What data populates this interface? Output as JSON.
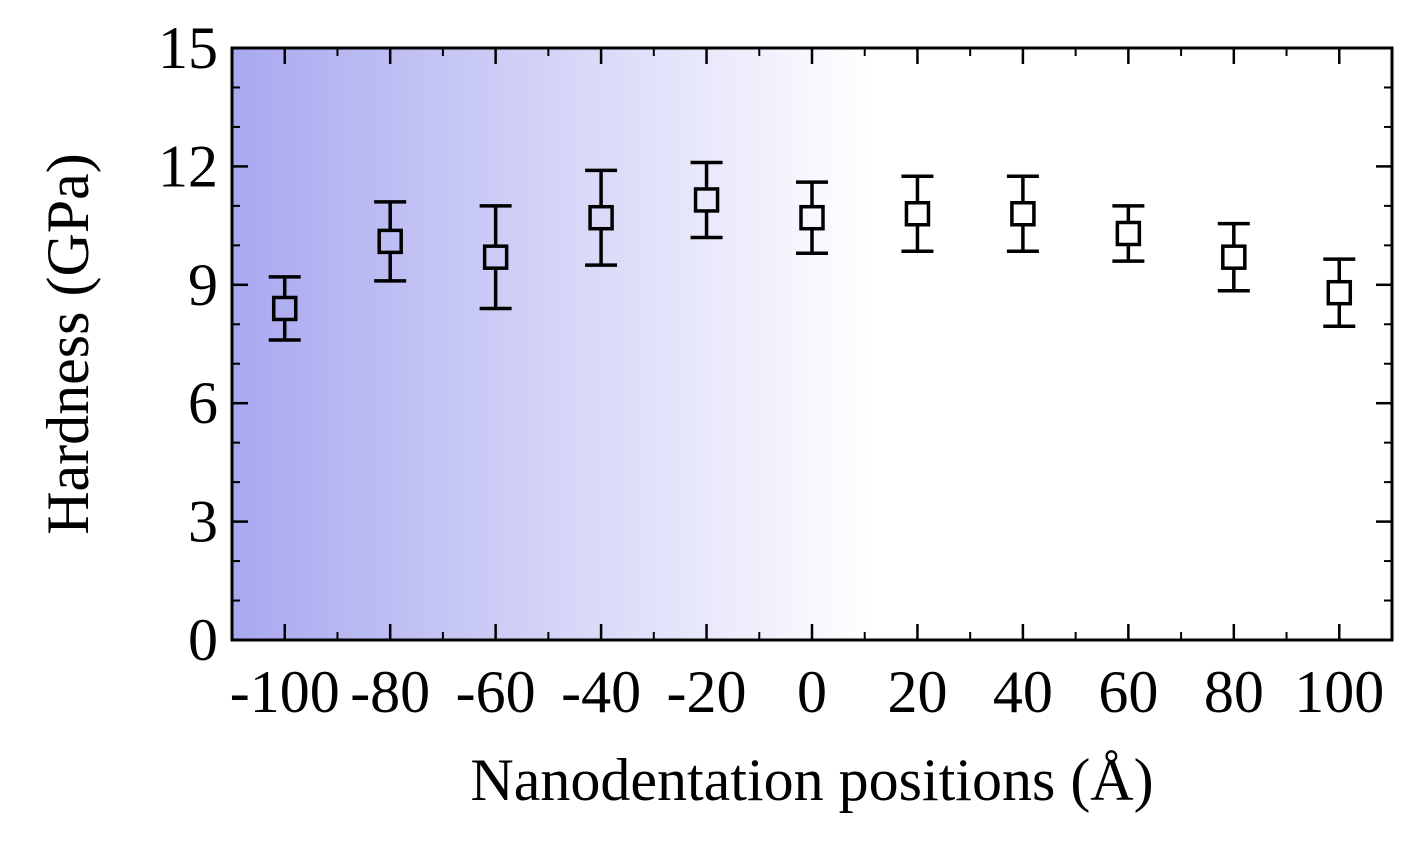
{
  "chart_data": {
    "type": "scatter",
    "title": "",
    "xlabel": "Nanodentation positions (Å)",
    "ylabel": "Hardness (GPa)",
    "xlim": [
      -110,
      110
    ],
    "ylim": [
      0,
      15
    ],
    "x_ticks": [
      -100,
      -80,
      -60,
      -40,
      -20,
      0,
      20,
      40,
      60,
      80,
      100
    ],
    "x_tick_labels": [
      "-100",
      "-80",
      "-60",
      "-40",
      "-20",
      "0",
      "20",
      "40",
      "60",
      "80",
      "100"
    ],
    "y_ticks": [
      0,
      3,
      6,
      9,
      12,
      15
    ],
    "y_tick_labels": [
      "0",
      "3",
      "6",
      "9",
      "12",
      "15"
    ],
    "grid": false,
    "marker": "open-square",
    "background": "gradient-blue-left-to-white",
    "colors": {
      "marker": "#000000",
      "gradient_start": "#a8a8f0",
      "gradient_end": "#ffffff"
    },
    "series": [
      {
        "x": [
          -100,
          -80,
          -60,
          -40,
          -20,
          0,
          20,
          40,
          60,
          80,
          100
        ],
        "y": [
          8.4,
          10.1,
          9.7,
          10.7,
          11.15,
          10.7,
          10.8,
          10.8,
          10.3,
          9.7,
          8.8
        ],
        "error": [
          0.8,
          1.0,
          1.3,
          1.2,
          0.95,
          0.9,
          0.95,
          0.95,
          0.7,
          0.85,
          0.85
        ]
      }
    ]
  }
}
